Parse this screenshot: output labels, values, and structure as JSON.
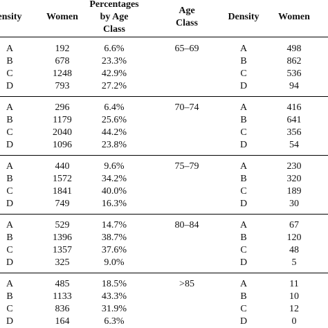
{
  "headers": {
    "density_left": "ensity",
    "women_left": "Women",
    "percent_line1": "Percentages",
    "percent_line2": "by Age",
    "percent_line3": "Class",
    "age_line1": "Age",
    "age_line2": "Class",
    "density_right": "Density",
    "women_right": "Women"
  },
  "groups": [
    {
      "age_class": "65–69",
      "rows": [
        {
          "density": "A",
          "women": "192",
          "pct": "6.6%",
          "r_density": "A",
          "r_women": "498"
        },
        {
          "density": "B",
          "women": "678",
          "pct": "23.3%",
          "r_density": "B",
          "r_women": "862"
        },
        {
          "density": "C",
          "women": "1248",
          "pct": "42.9%",
          "r_density": "C",
          "r_women": "536"
        },
        {
          "density": "D",
          "women": "793",
          "pct": "27.2%",
          "r_density": "D",
          "r_women": "94"
        }
      ]
    },
    {
      "age_class": "70–74",
      "rows": [
        {
          "density": "A",
          "women": "296",
          "pct": "6.4%",
          "r_density": "A",
          "r_women": "416"
        },
        {
          "density": "B",
          "women": "1179",
          "pct": "25.6%",
          "r_density": "B",
          "r_women": "641"
        },
        {
          "density": "C",
          "women": "2040",
          "pct": "44.2%",
          "r_density": "C",
          "r_women": "356"
        },
        {
          "density": "D",
          "women": "1096",
          "pct": "23.8%",
          "r_density": "D",
          "r_women": "54"
        }
      ]
    },
    {
      "age_class": "75–79",
      "rows": [
        {
          "density": "A",
          "women": "440",
          "pct": "9.6%",
          "r_density": "A",
          "r_women": "230"
        },
        {
          "density": "B",
          "women": "1572",
          "pct": "34.2%",
          "r_density": "B",
          "r_women": "320"
        },
        {
          "density": "C",
          "women": "1841",
          "pct": "40.0%",
          "r_density": "C",
          "r_women": "189"
        },
        {
          "density": "D",
          "women": "749",
          "pct": "16.3%",
          "r_density": "D",
          "r_women": "30"
        }
      ]
    },
    {
      "age_class": "80–84",
      "rows": [
        {
          "density": "A",
          "women": "529",
          "pct": "14.7%",
          "r_density": "A",
          "r_women": "67"
        },
        {
          "density": "B",
          "women": "1396",
          "pct": "38.7%",
          "r_density": "B",
          "r_women": "120"
        },
        {
          "density": "C",
          "women": "1357",
          "pct": "37.6%",
          "r_density": "C",
          "r_women": "48"
        },
        {
          "density": "D",
          "women": "325",
          "pct": "9.0%",
          "r_density": "D",
          "r_women": "5"
        }
      ]
    },
    {
      "age_class": ">85",
      "rows": [
        {
          "density": "A",
          "women": "485",
          "pct": "18.5%",
          "r_density": "A",
          "r_women": "11"
        },
        {
          "density": "B",
          "women": "1133",
          "pct": "43.3%",
          "r_density": "B",
          "r_women": "10"
        },
        {
          "density": "C",
          "women": "836",
          "pct": "31.9%",
          "r_density": "C",
          "r_women": "12"
        },
        {
          "density": "D",
          "women": "164",
          "pct": "6.3%",
          "r_density": "D",
          "r_women": "0"
        }
      ]
    }
  ]
}
